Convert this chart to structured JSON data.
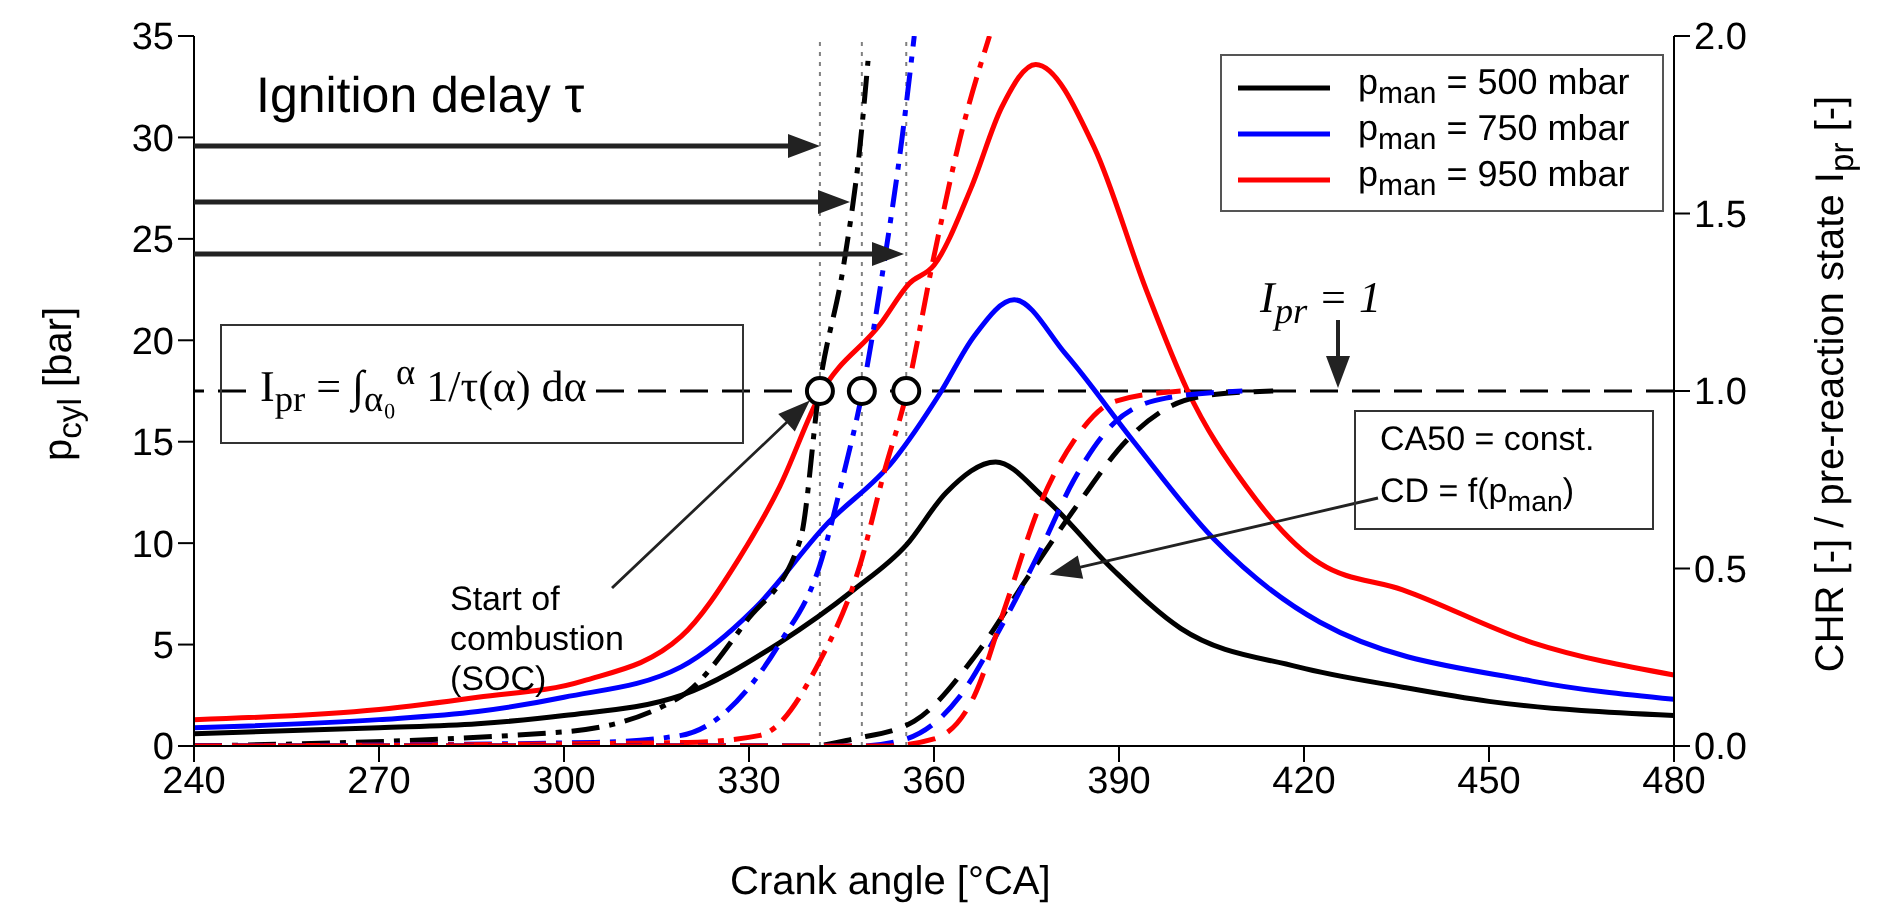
{
  "chart_data": {
    "type": "line",
    "xlabel": "Crank angle [°CA]",
    "ylabel": "p$_{cyl}$ [bar]",
    "y2label": "CHR [-] / pre-reaction state I$_{pr}$ [-]",
    "xlim": [
      240,
      480
    ],
    "xticks": [
      240,
      270,
      300,
      330,
      360,
      390,
      420,
      450,
      480
    ],
    "ylim": [
      0,
      35
    ],
    "yticks": [
      0,
      5,
      10,
      15,
      20,
      25,
      30,
      35
    ],
    "y2lim": [
      0,
      2
    ],
    "y2ticks": [
      {
        "value": 0,
        "label": "0.0"
      },
      {
        "value": 0.5,
        "label": "0.5"
      },
      {
        "value": 1,
        "label": "1.0"
      },
      {
        "value": 1.5,
        "label": "1.5"
      },
      {
        "value": 2,
        "label": "2.0"
      }
    ],
    "legend": "top right",
    "series": [
      {
        "name": "p$_{man}$ = 500 mbar",
        "color": "#000000",
        "line_style": "solid",
        "x": [
          240,
          270,
          286,
          300,
          319,
          335,
          347,
          355.5,
          362,
          370,
          378,
          389,
          400,
          419,
          436,
          450,
          480
        ],
        "values": [
          0.6,
          0.9,
          1.1,
          1.5,
          2.5,
          5.1,
          7.7,
          9.9,
          12.5,
          14.0,
          12.2,
          8.7,
          5.8,
          3.9,
          2.9,
          2.2,
          1.5
        ]
      },
      {
        "name": "p$_{man}$ = 750 mbar",
        "color": "#0000ff",
        "line_style": "solid",
        "x": [
          240,
          270,
          286,
          300,
          319,
          331,
          342.5,
          353.5,
          361,
          366.5,
          373,
          381.4,
          392.4,
          405.4,
          422.6,
          457,
          480
        ],
        "values": [
          0.9,
          1.3,
          1.7,
          2.4,
          3.9,
          6.8,
          10.9,
          14.1,
          17.4,
          20.2,
          22.0,
          19.3,
          15.0,
          10.2,
          6.1,
          3.2,
          2.3
        ]
      },
      {
        "name": "p$_{man}$ = 950 mbar",
        "color": "#ff0000",
        "line_style": "solid",
        "x": [
          240,
          270,
          286,
          303,
          319,
          328.5,
          335,
          341.5,
          351.3,
          356,
          360,
          366,
          371,
          376.5,
          386,
          394.4,
          401,
          410.6,
          422.6,
          436,
          457,
          480
        ],
        "values": [
          1.3,
          1.8,
          2.4,
          3.2,
          5.4,
          9.3,
          12.8,
          17.3,
          20.8,
          22.8,
          23.7,
          27.5,
          31.5,
          33.6,
          29.5,
          22.5,
          17.6,
          12.8,
          9.0,
          7.7,
          5.1,
          3.5
        ]
      },
      {
        "axis": "y2",
        "color": "#000000",
        "line_style": "dashdot",
        "x": [
          240,
          300,
          319,
          329.5,
          338.3,
          341.5,
          345.4,
          348,
          349.3
        ],
        "values": [
          0,
          0.04,
          0.14,
          0.35,
          0.58,
          1.02,
          1.36,
          1.69,
          1.93
        ]
      },
      {
        "axis": "y2",
        "color": "#0000ff",
        "line_style": "dashdot",
        "x": [
          240,
          305,
          319,
          335,
          341.5,
          345.4,
          348.3,
          351.9,
          354.8,
          356.8
        ],
        "values": [
          0,
          0.01,
          0.03,
          0.29,
          0.51,
          0.77,
          0.99,
          1.36,
          1.71,
          2.0
        ]
      },
      {
        "axis": "y2",
        "color": "#ff0000",
        "line_style": "dashdot",
        "x": [
          240,
          320,
          331.8,
          341.5,
          348,
          351.9,
          355.5,
          360,
          364.2,
          369
        ],
        "values": [
          0,
          0.01,
          0.03,
          0.24,
          0.51,
          0.77,
          0.99,
          1.38,
          1.71,
          2.0
        ]
      },
      {
        "axis": "y2",
        "color": "#000000",
        "line_style": "dashed",
        "x": [
          240,
          340,
          347,
          356.8,
          366.5,
          375,
          383.7,
          391.2,
          397.6,
          405.4,
          415
        ],
        "values": [
          0,
          0,
          0.02,
          0.07,
          0.25,
          0.47,
          0.69,
          0.86,
          0.95,
          0.99,
          1.0
        ]
      },
      {
        "axis": "y2",
        "color": "#0000ff",
        "line_style": "dashed",
        "x": [
          240,
          348,
          355.5,
          364.2,
          370.7,
          377.2,
          382.7,
          389.2,
          397.6,
          410
        ],
        "values": [
          0,
          0,
          0.02,
          0.14,
          0.33,
          0.55,
          0.75,
          0.91,
          0.98,
          1.0
        ]
      },
      {
        "axis": "y2",
        "color": "#ff0000",
        "line_style": "dashed",
        "x": [
          240,
          352,
          360,
          366.5,
          371.7,
          377.2,
          382.7,
          389.2,
          400
        ],
        "values": [
          0,
          0,
          0.02,
          0.14,
          0.4,
          0.68,
          0.86,
          0.97,
          1.0
        ]
      },
      {
        "type": "scatter",
        "axis": "y2",
        "color": "#000000",
        "marker": "circle",
        "x": [
          341.5,
          348.3,
          355.5
        ],
        "values": [
          1,
          1,
          1
        ]
      }
    ],
    "ref_lines": [
      {
        "axis": "y2",
        "value": 1,
        "color": "#000000",
        "line_style": "dashed"
      },
      {
        "axis": "x",
        "value": 341.5,
        "color": "#808080",
        "line_style": "dotted"
      },
      {
        "axis": "x",
        "value": 348.3,
        "color": "#808080",
        "line_style": "dotted"
      },
      {
        "axis": "x",
        "value": 355.5,
        "color": "#808080",
        "line_style": "dotted"
      }
    ],
    "annotations": [
      "Ignition delay τ",
      "I$_{pr}$ = 1",
      "I$_{pr}$ = ∫$_{α₀}$$^{α}$ 1/τ(α) dα",
      "Start of combustion (SOC)",
      "CA50 = const.",
      "CD = f(p$_{man}$)"
    ]
  }
}
